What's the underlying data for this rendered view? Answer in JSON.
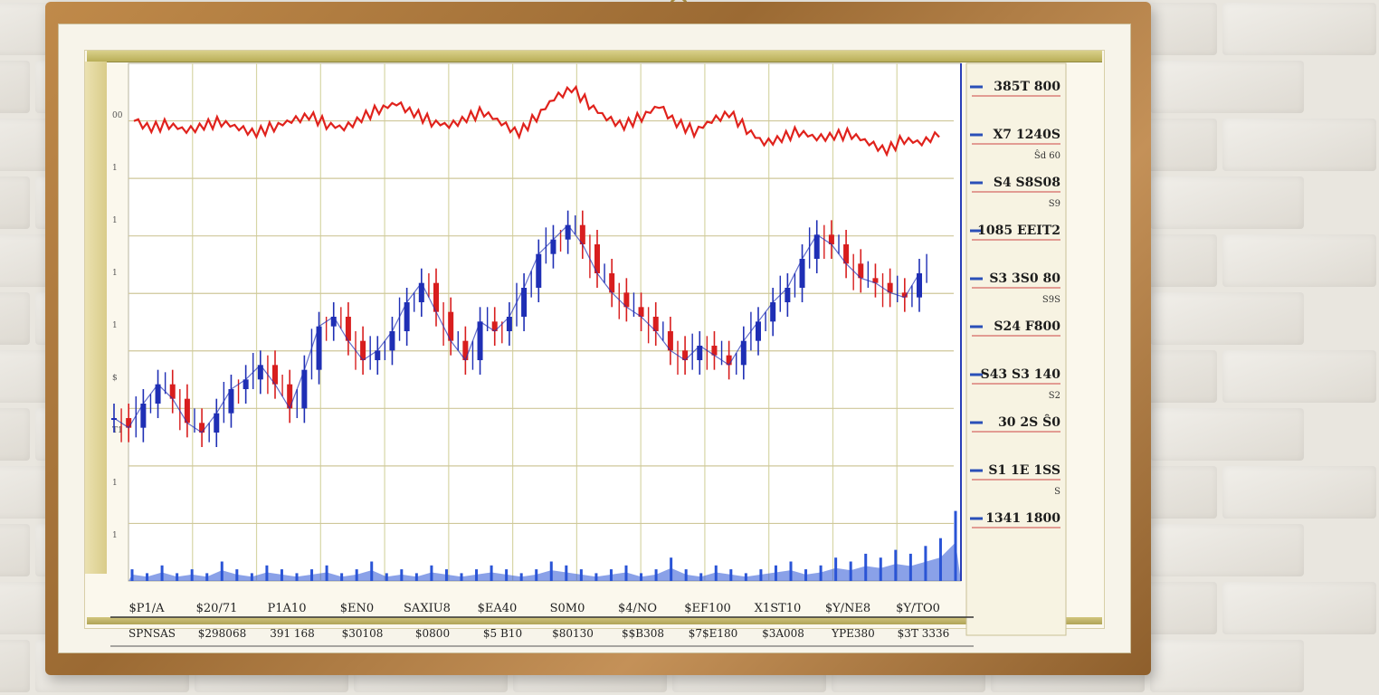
{
  "chart_data": {
    "type": "line",
    "upper_series": {
      "color": "#e0221c",
      "values": [
        79,
        76,
        78,
        75,
        77,
        79,
        76,
        74,
        77,
        79,
        81,
        78,
        76,
        80,
        84,
        86,
        82,
        79,
        77,
        80,
        83,
        78,
        74,
        81,
        88,
        92,
        86,
        80,
        77,
        81,
        85,
        78,
        75,
        79,
        82,
        76,
        70,
        72,
        75,
        72,
        73,
        74,
        70,
        67,
        72,
        70,
        74
      ]
    },
    "candles": {
      "up_color": "#1f2fb5",
      "down_color": "#d81e1e",
      "closes": [
        42,
        40,
        45,
        49,
        46,
        41,
        39,
        43,
        48,
        50,
        53,
        49,
        44,
        52,
        61,
        63,
        58,
        54,
        56,
        60,
        66,
        70,
        64,
        58,
        54,
        62,
        60,
        63,
        69,
        76,
        79,
        82,
        78,
        72,
        68,
        65,
        63,
        60,
        56,
        54,
        57,
        55,
        53,
        58,
        62,
        66,
        69,
        75,
        80,
        78,
        74,
        71,
        70,
        68,
        67,
        72
      ]
    },
    "volume": {
      "color": "#2a54d6",
      "values": [
        3,
        2,
        4,
        2,
        3,
        2,
        5,
        3,
        2,
        4,
        3,
        2,
        3,
        4,
        2,
        3,
        5,
        2,
        3,
        2,
        4,
        3,
        2,
        3,
        4,
        3,
        2,
        3,
        5,
        4,
        3,
        2,
        3,
        4,
        2,
        3,
        6,
        3,
        2,
        4,
        3,
        2,
        3,
        4,
        5,
        3,
        4,
        6,
        5,
        7,
        6,
        8,
        7,
        9,
        11,
        18
      ]
    },
    "right_labels": [
      {
        "label": "385T 800",
        "sub": ""
      },
      {
        "label": "X7 1240S",
        "sub": "Ŝd 60"
      },
      {
        "label": "S4 S8S08",
        "sub": "S9"
      },
      {
        "label": "1085 EEIT2",
        "sub": ""
      },
      {
        "label": "S3 3S0 80",
        "sub": "S9S"
      },
      {
        "label": "S24 F800",
        "sub": ""
      },
      {
        "label": "S43 S3 140",
        "sub": "S2"
      },
      {
        "label": "30 2S Ŝ0",
        "sub": ""
      },
      {
        "label": "S1 1E 1SS",
        "sub": "S"
      },
      {
        "label": "1341 1800",
        "sub": ""
      }
    ],
    "x_labels_top": [
      "$P1/A",
      "$20/71",
      "P1A10",
      "$EN0",
      "SAXIU8",
      "$EA40",
      "S0M0",
      "$4/NO",
      "$EF100",
      "X1ST10",
      "$Y/NE8",
      "$Y/TO0"
    ],
    "x_labels_bottom": [
      "SPNSAS",
      "$298068",
      "391 168",
      "$30108",
      "$0800",
      "$5 B10",
      "$80130",
      "$$B308",
      "$7$E180",
      "$3A008",
      "YPE380",
      "$3T 3336"
    ],
    "left_ticks": [
      "00",
      "1",
      "1",
      "1",
      "1",
      "$",
      "T1",
      "1",
      "1"
    ]
  }
}
